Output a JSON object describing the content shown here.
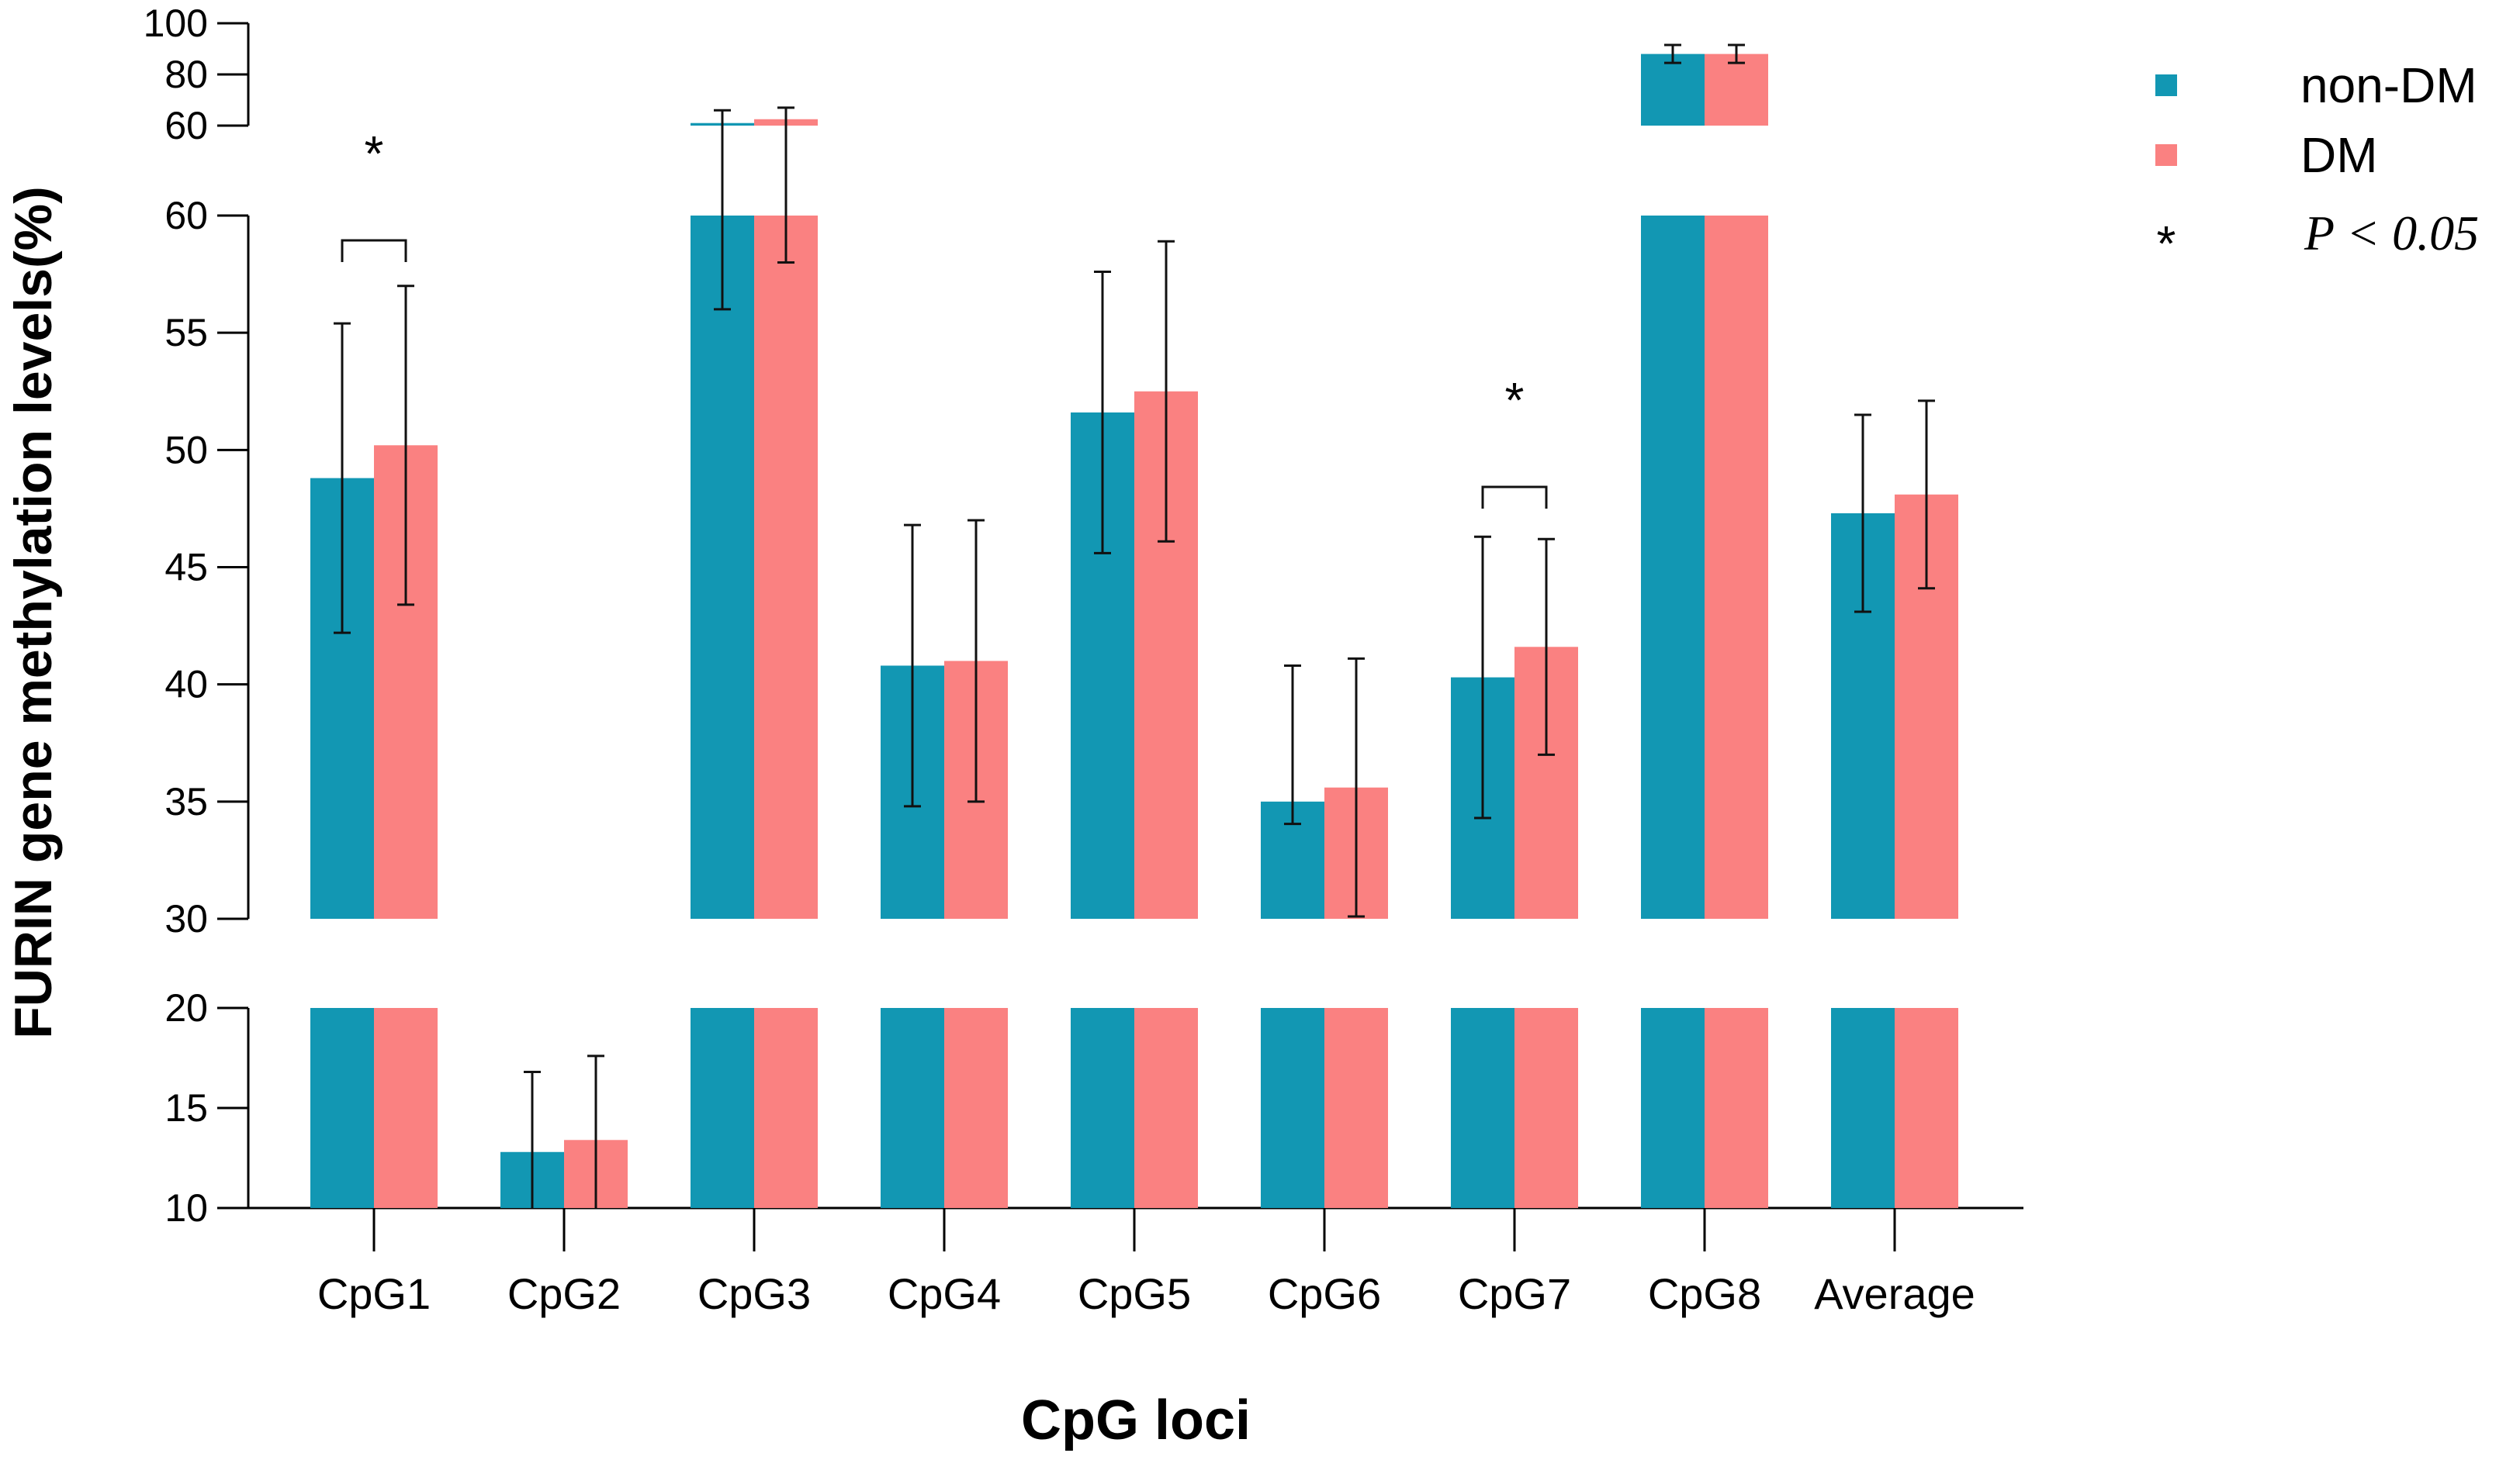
{
  "chart_data": {
    "type": "bar",
    "title": "",
    "xlabel": "CpG loci",
    "ylabel": "FURIN gene methylation levels(%)",
    "categories": [
      "CpG1",
      "CpG2",
      "CpG3",
      "CpG4",
      "CpG5",
      "CpG6",
      "CpG7",
      "CpG8",
      "Average"
    ],
    "series": [
      {
        "name": "non-DM",
        "color": "#1297B3",
        "values": [
          48.8,
          12.8,
          61.0,
          40.8,
          51.6,
          35.0,
          40.3,
          88.0,
          47.3
        ],
        "errors": [
          6.6,
          4.0,
          5.0,
          6.0,
          6.0,
          5.8,
          6.0,
          3.5,
          4.2
        ]
      },
      {
        "name": "DM",
        "color": "#FA8181",
        "values": [
          50.2,
          13.4,
          62.5,
          41.0,
          52.5,
          35.6,
          41.6,
          88.0,
          48.1
        ],
        "errors": [
          6.8,
          4.2,
          4.5,
          6.0,
          6.4,
          5.5,
          4.6,
          3.5,
          4.0
        ]
      }
    ],
    "axis_segments": [
      {
        "range": [
          60,
          100
        ],
        "ticks": [
          60,
          80,
          100
        ],
        "tick_labels": [
          "60",
          "80",
          "100"
        ]
      },
      {
        "range": [
          30,
          60
        ],
        "ticks": [
          30,
          35,
          40,
          45,
          50,
          55,
          60
        ],
        "tick_labels": [
          "30",
          "35",
          "40",
          "45",
          "50",
          "55",
          "60"
        ]
      },
      {
        "range": [
          10,
          20
        ],
        "ticks": [
          10,
          15,
          20
        ],
        "tick_labels": [
          "10",
          "15",
          "20"
        ]
      }
    ],
    "significance": [
      {
        "category": "CpG1",
        "label": "*"
      },
      {
        "category": "CpG7",
        "label": "*"
      }
    ],
    "legend": {
      "position": "top-right",
      "items": [
        {
          "label": "non-DM",
          "color": "#1297B3"
        },
        {
          "label": "DM",
          "color": "#FA8181"
        }
      ],
      "significance_symbol": "*",
      "significance_text": "P < 0.05"
    }
  }
}
